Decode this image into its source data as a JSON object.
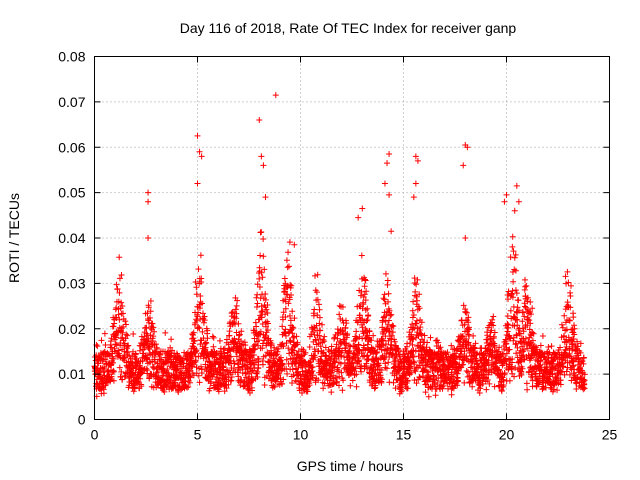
{
  "chart_data": {
    "type": "scatter",
    "title": "Day 116 of 2018, Rate Of TEC Index for receiver ganp",
    "xlabel": "GPS time / hours",
    "ylabel": "ROTI / TECUs",
    "xlim": [
      0,
      25
    ],
    "ylim": [
      0,
      0.08
    ],
    "xticks": [
      0,
      5,
      10,
      15,
      20,
      25
    ],
    "xtick_labels": [
      "0",
      "5",
      "10",
      "15",
      "20",
      "25"
    ],
    "yticks": [
      0,
      0.01,
      0.02,
      0.03,
      0.04,
      0.05,
      0.06,
      0.07,
      0.08
    ],
    "ytick_labels": [
      "0",
      "0.01",
      "0.02",
      "0.03",
      "0.04",
      "0.05",
      "0.06",
      "0.07",
      "0.08"
    ],
    "grid": true,
    "marker": "+",
    "series": [
      {
        "name": "ROTI",
        "color": "#ff0000",
        "data_range_hours": [
          0,
          23.8
        ],
        "notable_points": [
          {
            "x": 2.6,
            "y": 0.05
          },
          {
            "x": 2.6,
            "y": 0.048
          },
          {
            "x": 2.6,
            "y": 0.04
          },
          {
            "x": 5.0,
            "y": 0.0625
          },
          {
            "x": 5.1,
            "y": 0.059
          },
          {
            "x": 5.2,
            "y": 0.058
          },
          {
            "x": 5.0,
            "y": 0.052
          },
          {
            "x": 8.0,
            "y": 0.066
          },
          {
            "x": 8.8,
            "y": 0.0715
          },
          {
            "x": 8.1,
            "y": 0.058
          },
          {
            "x": 8.2,
            "y": 0.056
          },
          {
            "x": 8.3,
            "y": 0.049
          },
          {
            "x": 9.7,
            "y": 0.0385
          },
          {
            "x": 13.0,
            "y": 0.0465
          },
          {
            "x": 12.8,
            "y": 0.0445
          },
          {
            "x": 14.3,
            "y": 0.0585
          },
          {
            "x": 14.2,
            "y": 0.0565
          },
          {
            "x": 14.1,
            "y": 0.052
          },
          {
            "x": 14.3,
            "y": 0.0495
          },
          {
            "x": 14.4,
            "y": 0.0415
          },
          {
            "x": 15.6,
            "y": 0.058
          },
          {
            "x": 15.7,
            "y": 0.057
          },
          {
            "x": 15.6,
            "y": 0.052
          },
          {
            "x": 15.5,
            "y": 0.049
          },
          {
            "x": 18.0,
            "y": 0.0605
          },
          {
            "x": 18.1,
            "y": 0.06
          },
          {
            "x": 17.9,
            "y": 0.056
          },
          {
            "x": 18.0,
            "y": 0.04
          },
          {
            "x": 20.0,
            "y": 0.0495
          },
          {
            "x": 19.9,
            "y": 0.048
          },
          {
            "x": 20.5,
            "y": 0.0515
          },
          {
            "x": 20.6,
            "y": 0.048
          },
          {
            "x": 20.4,
            "y": 0.046
          }
        ],
        "activity_bursts_hours": [
          {
            "center": 1.2,
            "peak": 0.038
          },
          {
            "center": 2.6,
            "peak": 0.03
          },
          {
            "center": 5.1,
            "peak": 0.04
          },
          {
            "center": 6.8,
            "peak": 0.03
          },
          {
            "center": 8.1,
            "peak": 0.045
          },
          {
            "center": 9.4,
            "peak": 0.042
          },
          {
            "center": 10.8,
            "peak": 0.035
          },
          {
            "center": 12.0,
            "peak": 0.03
          },
          {
            "center": 13.0,
            "peak": 0.038
          },
          {
            "center": 14.2,
            "peak": 0.035
          },
          {
            "center": 15.6,
            "peak": 0.036
          },
          {
            "center": 18.0,
            "peak": 0.03
          },
          {
            "center": 19.3,
            "peak": 0.025
          },
          {
            "center": 20.3,
            "peak": 0.045
          },
          {
            "center": 21.0,
            "peak": 0.035
          },
          {
            "center": 23.0,
            "peak": 0.037
          }
        ],
        "baseline_range": [
          0.003,
          0.015
        ]
      }
    ]
  }
}
